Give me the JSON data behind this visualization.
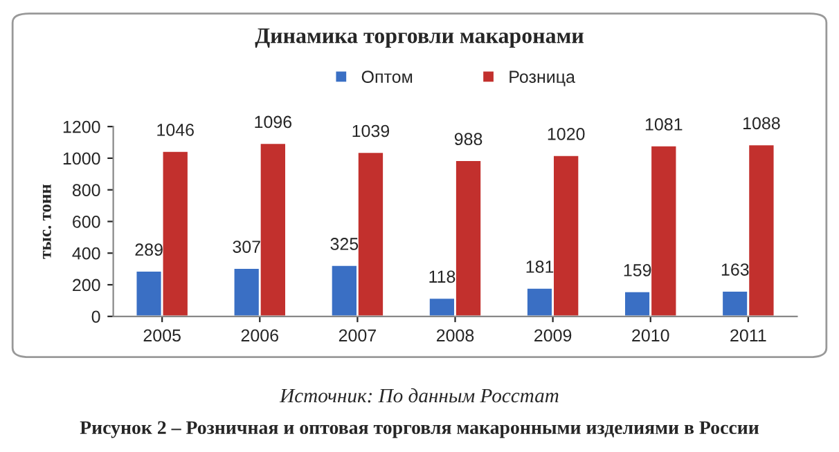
{
  "chart_data": {
    "type": "bar",
    "title": "Динамика торговли макаронами",
    "ylabel": "тыс. тонн",
    "categories": [
      "2005",
      "2006",
      "2007",
      "2008",
      "2009",
      "2010",
      "2011"
    ],
    "series": [
      {
        "name": "Оптом",
        "color": "#3a6fc4",
        "values": [
          289,
          307,
          325,
          118,
          181,
          159,
          163
        ]
      },
      {
        "name": "Розница",
        "color": "#c2302d",
        "values": [
          1046,
          1096,
          1039,
          988,
          1020,
          1081,
          1088
        ]
      }
    ],
    "ylim": [
      0,
      1200
    ],
    "yticks": [
      0,
      200,
      400,
      600,
      800,
      1000,
      1200
    ],
    "data_labels": true,
    "legend": "top",
    "grid": false,
    "annotations": [
      "Источник: По данным Росстат",
      "Рисунок 2 – Розничная и оптовая торговля макаронными изделиями в России"
    ]
  }
}
